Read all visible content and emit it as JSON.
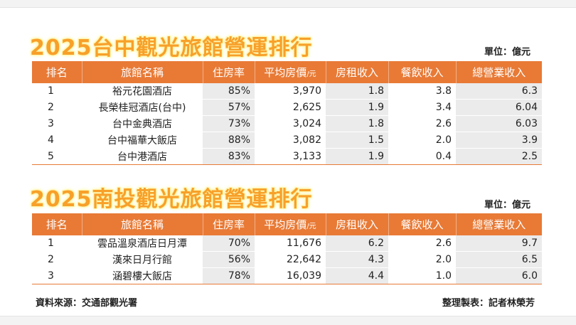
{
  "taichung": {
    "title": "2025台中觀光旅館營運排行",
    "unit": "單位：億元",
    "headers": {
      "rank": "排名",
      "name": "旅館名稱",
      "occupancy": "住房率",
      "price": "平均房價",
      "price_unit": "/元",
      "room_revenue": "房租收入",
      "food_revenue": "餐飲收入",
      "total_revenue": "總營業收入"
    },
    "rows": [
      {
        "rank": "1",
        "name": "裕元花園酒店",
        "occupancy": "85%",
        "price": "3,970",
        "room": "1.8",
        "food": "3.8",
        "total": "6.3"
      },
      {
        "rank": "2",
        "name": "長榮桂冠酒店(台中)",
        "occupancy": "57%",
        "price": "2,625",
        "room": "1.9",
        "food": "3.4",
        "total": "6.04"
      },
      {
        "rank": "3",
        "name": "台中金典酒店",
        "occupancy": "73%",
        "price": "3,024",
        "room": "1.8",
        "food": "2.6",
        "total": "6.03"
      },
      {
        "rank": "4",
        "name": "台中福華大飯店",
        "occupancy": "88%",
        "price": "3,082",
        "room": "1.5",
        "food": "2.0",
        "total": "3.9"
      },
      {
        "rank": "5",
        "name": "台中港酒店",
        "occupancy": "83%",
        "price": "3,133",
        "room": "1.9",
        "food": "0.4",
        "total": "2.5"
      }
    ]
  },
  "nantou": {
    "title": "2025南投觀光旅館營運排行",
    "unit": "單位：億元",
    "headers": {
      "rank": "排名",
      "name": "旅館名稱",
      "occupancy": "住房率",
      "price": "平均房價",
      "price_unit": "/元",
      "room_revenue": "房租收入",
      "food_revenue": "餐飲收入",
      "total_revenue": "總營業收入"
    },
    "rows": [
      {
        "rank": "1",
        "name": "雲品溫泉酒店日月潭",
        "occupancy": "70%",
        "price": "11,676",
        "room": "6.2",
        "food": "2.6",
        "total": "9.7"
      },
      {
        "rank": "2",
        "name": "漢來日月行館",
        "occupancy": "56%",
        "price": "22,642",
        "room": "4.3",
        "food": "2.0",
        "total": "6.5"
      },
      {
        "rank": "3",
        "name": "涵碧樓大飯店",
        "occupancy": "78%",
        "price": "16,039",
        "room": "4.4",
        "food": "1.0",
        "total": "6.0"
      }
    ]
  },
  "footer": {
    "source": "資料來源：交通部觀光署",
    "credit": "整理製表：記者林榮芳"
  },
  "colors": {
    "header_bg": "#e87a36",
    "title_text": "#f7a02a",
    "title_glow": "#fff6b0",
    "shaded_cell": "#ebebeb"
  }
}
